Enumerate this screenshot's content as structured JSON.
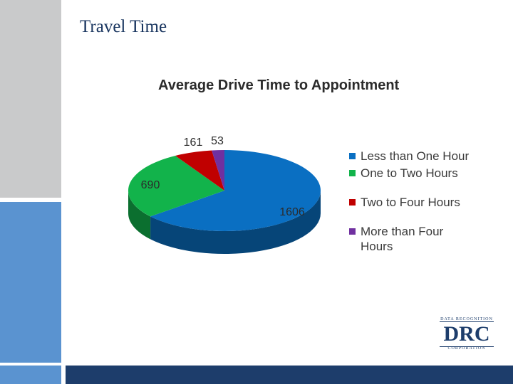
{
  "slide": {
    "title": "Travel Time"
  },
  "chart_data": {
    "type": "pie",
    "title": "Average Drive Time to Appointment",
    "categories": [
      "Less than One Hour",
      "One to Two Hours",
      "Two to Four Hours",
      "More than Four Hours"
    ],
    "values": [
      1606,
      690,
      161,
      53
    ],
    "colors": [
      "#0a6fc2",
      "#12b34b",
      "#c00000",
      "#7030a0"
    ],
    "style": "3d-pie",
    "legend_position": "right"
  },
  "logo": {
    "top": "DATA RECOGNITION",
    "main": "DRC",
    "bottom": "CORPORATION"
  },
  "theme": {
    "navy": "#1d3d6b",
    "side_blue": "#5a93d0",
    "side_gray": "#c9cacb"
  }
}
